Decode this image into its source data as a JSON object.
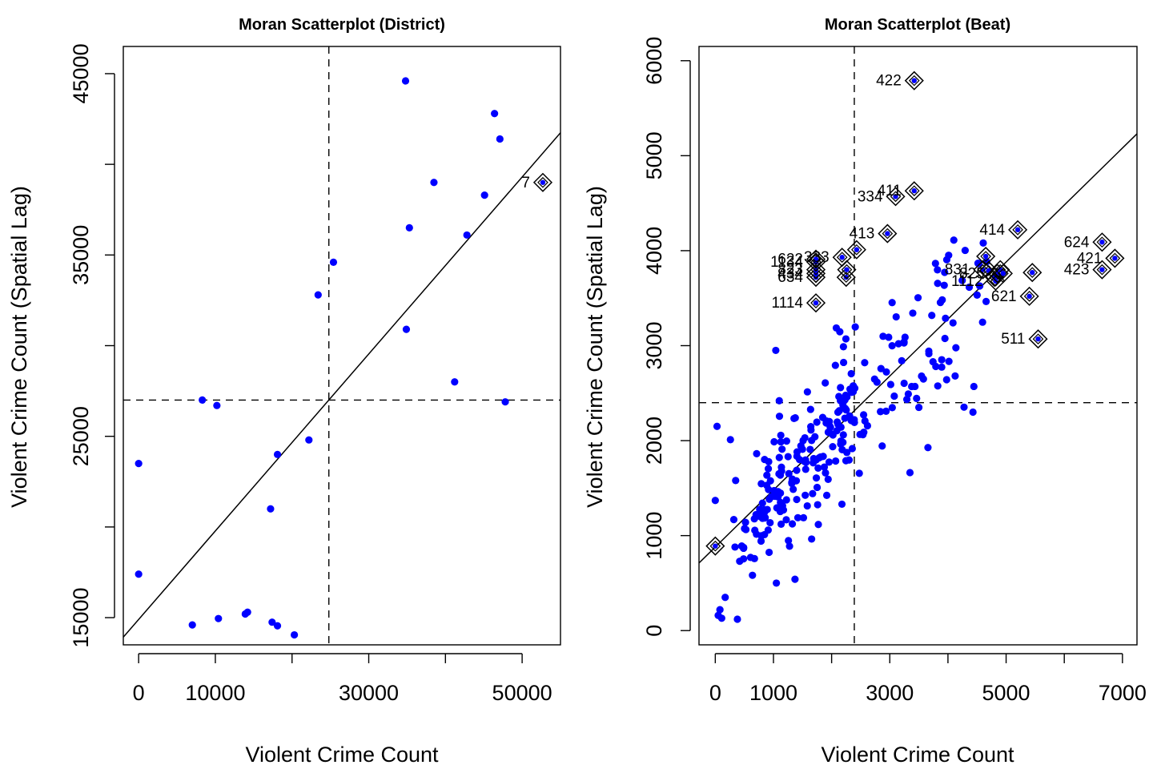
{
  "chart_data": [
    {
      "type": "scatter",
      "title": "Moran Scatterplot (District)",
      "xlabel": "Violent Crime Count",
      "ylabel": "Violent Crime Count (Spatial Lag)",
      "xlim": [
        -2000,
        55000
      ],
      "ylim": [
        13500,
        46500
      ],
      "x_ticks": [
        0,
        10000,
        20000,
        30000,
        40000,
        50000
      ],
      "x_tick_labels": [
        "0",
        "10000",
        "",
        "30000",
        "",
        "50000"
      ],
      "y_ticks": [
        15000,
        20000,
        25000,
        30000,
        35000,
        40000,
        45000
      ],
      "y_tick_labels": [
        "15000",
        "",
        "25000",
        "",
        "35000",
        "",
        "45000"
      ],
      "mean_x": 24800,
      "mean_y": 27000,
      "regression_line": {
        "slope": 0.488,
        "intercept": 14900
      },
      "point_color": "#0000ff",
      "points": [
        {
          "x": 0,
          "y": 23500
        },
        {
          "x": 0,
          "y": 17400
        },
        {
          "x": 7000,
          "y": 14600
        },
        {
          "x": 8300,
          "y": 27000
        },
        {
          "x": 10200,
          "y": 26700
        },
        {
          "x": 10400,
          "y": 14950
        },
        {
          "x": 13900,
          "y": 15200
        },
        {
          "x": 14200,
          "y": 15300
        },
        {
          "x": 17200,
          "y": 21000
        },
        {
          "x": 17400,
          "y": 14750
        },
        {
          "x": 18100,
          "y": 24000
        },
        {
          "x": 18100,
          "y": 14550
        },
        {
          "x": 20300,
          "y": 14050
        },
        {
          "x": 22200,
          "y": 24800
        },
        {
          "x": 23400,
          "y": 32800
        },
        {
          "x": 25400,
          "y": 34600
        },
        {
          "x": 34800,
          "y": 44600
        },
        {
          "x": 34900,
          "y": 30900
        },
        {
          "x": 35300,
          "y": 36500
        },
        {
          "x": 38500,
          "y": 39000
        },
        {
          "x": 41200,
          "y": 28000
        },
        {
          "x": 42800,
          "y": 36100
        },
        {
          "x": 45100,
          "y": 38300
        },
        {
          "x": 46400,
          "y": 42800
        },
        {
          "x": 47100,
          "y": 41400
        },
        {
          "x": 47800,
          "y": 26900
        }
      ],
      "influential": [
        {
          "x": 52700,
          "y": 39000,
          "label": "7"
        }
      ]
    },
    {
      "type": "scatter",
      "title": "Moran Scatterplot (Beat)",
      "xlabel": "Violent Crime Count",
      "ylabel": "Violent Crime Count (Spatial Lag)",
      "xlim": [
        -280,
        7250
      ],
      "ylim": [
        -150,
        6150
      ],
      "x_ticks": [
        0,
        1000,
        2000,
        3000,
        4000,
        5000,
        6000,
        7000
      ],
      "x_tick_labels": [
        "0",
        "1000",
        "",
        "3000",
        "",
        "5000",
        "",
        "7000"
      ],
      "y_ticks": [
        0,
        1000,
        2000,
        3000,
        4000,
        5000,
        6000
      ],
      "y_tick_labels": [
        "0",
        "1000",
        "2000",
        "3000",
        "4000",
        "5000",
        "6000"
      ],
      "mean_x": 2390,
      "mean_y": 2400,
      "regression_line": {
        "slope": 0.6,
        "intercept": 880
      },
      "point_color": "#0000ff",
      "influential": [
        {
          "x": 0,
          "y": 890,
          "label": ""
        },
        {
          "x": 1730,
          "y": 3450,
          "label": "1114"
        },
        {
          "x": 1730,
          "y": 3720,
          "label": "634"
        },
        {
          "x": 1730,
          "y": 3760,
          "label": "434"
        },
        {
          "x": 1730,
          "y": 3800,
          "label": "823"
        },
        {
          "x": 1730,
          "y": 3880,
          "label": "1134"
        },
        {
          "x": 1730,
          "y": 3910,
          "label": "622"
        },
        {
          "x": 2180,
          "y": 3930,
          "label": "333"
        },
        {
          "x": 2250,
          "y": 3720,
          "label": ""
        },
        {
          "x": 2260,
          "y": 3800,
          "label": ""
        },
        {
          "x": 2430,
          "y": 4010,
          "label": ""
        },
        {
          "x": 2960,
          "y": 4180,
          "label": "413"
        },
        {
          "x": 3100,
          "y": 4570,
          "label": "334"
        },
        {
          "x": 3420,
          "y": 4630,
          "label": "411"
        },
        {
          "x": 3420,
          "y": 5790,
          "label": "422"
        },
        {
          "x": 4600,
          "y": 3800,
          "label": "831"
        },
        {
          "x": 4650,
          "y": 3940,
          "label": ""
        },
        {
          "x": 4700,
          "y": 3790,
          "label": ""
        },
        {
          "x": 4800,
          "y": 3720,
          "label": ""
        },
        {
          "x": 4820,
          "y": 3680,
          "label": "1112"
        },
        {
          "x": 4850,
          "y": 3760,
          "label": "825"
        },
        {
          "x": 4900,
          "y": 3800,
          "label": ""
        },
        {
          "x": 4950,
          "y": 3760,
          "label": ""
        },
        {
          "x": 5200,
          "y": 4220,
          "label": "414"
        },
        {
          "x": 5400,
          "y": 3520,
          "label": "621"
        },
        {
          "x": 5450,
          "y": 3770,
          "label": ""
        },
        {
          "x": 5550,
          "y": 3070,
          "label": "511"
        },
        {
          "x": 6650,
          "y": 4090,
          "label": "624"
        },
        {
          "x": 6650,
          "y": 3800,
          "label": "423"
        },
        {
          "x": 6870,
          "y": 3920,
          "label": "421"
        }
      ]
    }
  ]
}
